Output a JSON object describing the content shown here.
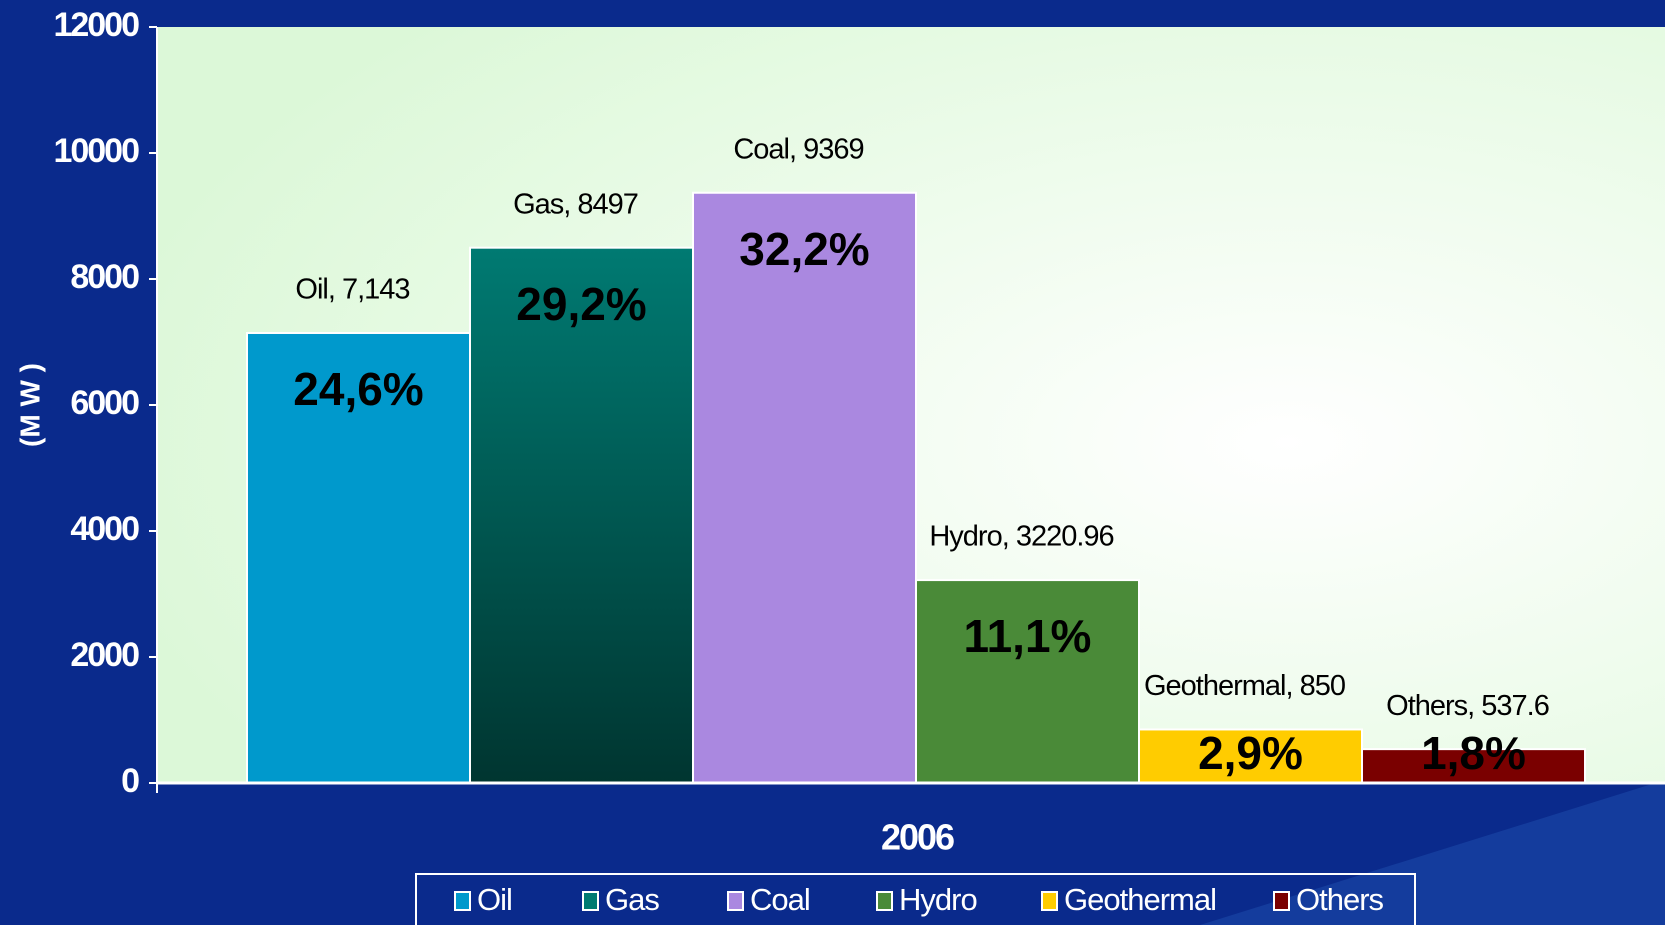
{
  "chart_data": {
    "type": "bar",
    "categories": [
      "2006"
    ],
    "y_label": "(M W )",
    "ylim": [
      0,
      12000
    ],
    "yticks": [
      0,
      2000,
      4000,
      6000,
      8000,
      10000,
      12000
    ],
    "legend": "bottom",
    "series": [
      {
        "name": "Oil",
        "color": "#0099cc",
        "values": [
          7143
        ],
        "value_labels": [
          "Oil, 7,143"
        ],
        "shares": [
          24.6
        ],
        "share_labels": [
          "24,6%"
        ]
      },
      {
        "name": "Gas",
        "color": "#007a72",
        "values": [
          8497
        ],
        "value_labels": [
          "Gas, 8497"
        ],
        "shares": [
          29.2
        ],
        "share_labels": [
          "29,2%"
        ]
      },
      {
        "name": "Coal",
        "color": "#aa88e0",
        "values": [
          9369
        ],
        "value_labels": [
          "Coal, 9369"
        ],
        "shares": [
          32.2
        ],
        "share_labels": [
          "32,2%"
        ]
      },
      {
        "name": "Hydro",
        "color": "#4a8a38",
        "values": [
          3220.96
        ],
        "value_labels": [
          "Hydro, 3220.96"
        ],
        "shares": [
          11.1
        ],
        "share_labels": [
          "11,1%"
        ]
      },
      {
        "name": "Geothermal",
        "color": "#ffcc00",
        "values": [
          850
        ],
        "value_labels": [
          "Geothermal, 850"
        ],
        "shares": [
          2.9
        ],
        "share_labels": [
          "2,9%"
        ]
      },
      {
        "name": "Others",
        "color": "#7a0000",
        "values": [
          537.6
        ],
        "value_labels": [
          "Others, 537.6"
        ],
        "shares": [
          1.8
        ],
        "share_labels": [
          "1,8%"
        ]
      }
    ]
  }
}
